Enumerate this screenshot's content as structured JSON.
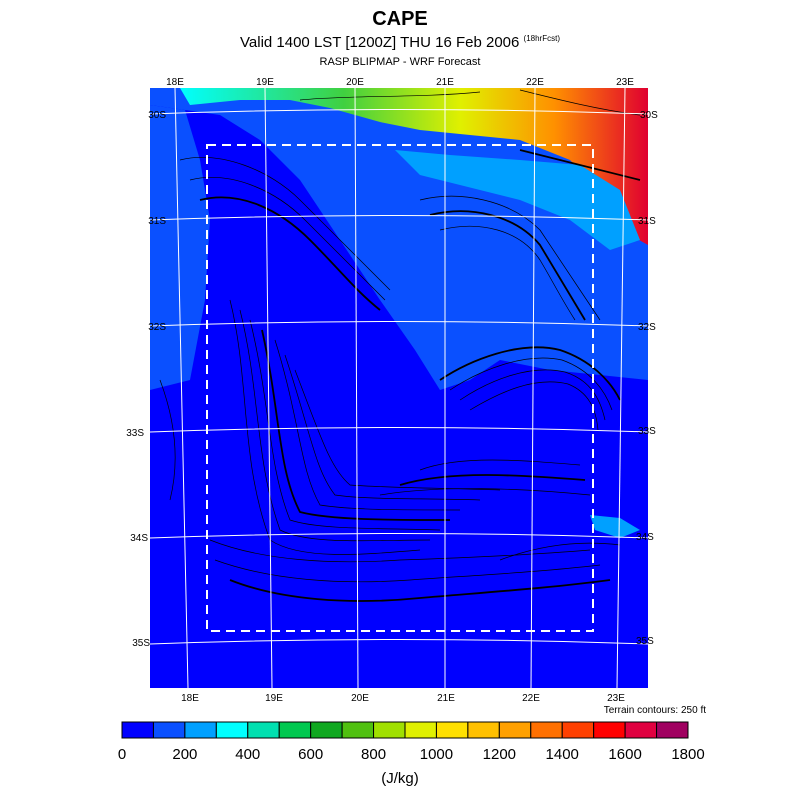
{
  "header": {
    "title": "CAPE",
    "subtitle": "Valid 1400 LST [1200Z] THU 16 Feb 2006",
    "subtitle_note": "(18hrFcst)",
    "subtitle2": "RASP BLIPMAP - WRF Forecast"
  },
  "map": {
    "lon_labels_top": [
      "18E",
      "19E",
      "20E",
      "21E",
      "22E",
      "23E"
    ],
    "lon_labels_bottom": [
      "18E",
      "19E",
      "20E",
      "21E",
      "22E",
      "23E"
    ],
    "lat_labels_left": [
      "30S",
      "31S",
      "32S",
      "33S",
      "34S",
      "35S"
    ],
    "lat_labels_right": [
      "30S",
      "31S",
      "32S",
      "33S",
      "34S",
      "35S"
    ],
    "terrain_note": "Terrain contours: 250 ft"
  },
  "colorbar": {
    "colors": [
      "#0000ff",
      "#0a50ff",
      "#00a0ff",
      "#00ffff",
      "#00e0b0",
      "#00c850",
      "#10a820",
      "#50c010",
      "#a0e000",
      "#e0f000",
      "#ffe000",
      "#ffc000",
      "#ffa000",
      "#ff7000",
      "#ff4000",
      "#ff0000",
      "#e00040",
      "#a00060"
    ],
    "labels": [
      "0",
      "200",
      "400",
      "600",
      "800",
      "1000",
      "1200",
      "1400",
      "1600",
      "1800"
    ],
    "units": "(J/kg)"
  }
}
